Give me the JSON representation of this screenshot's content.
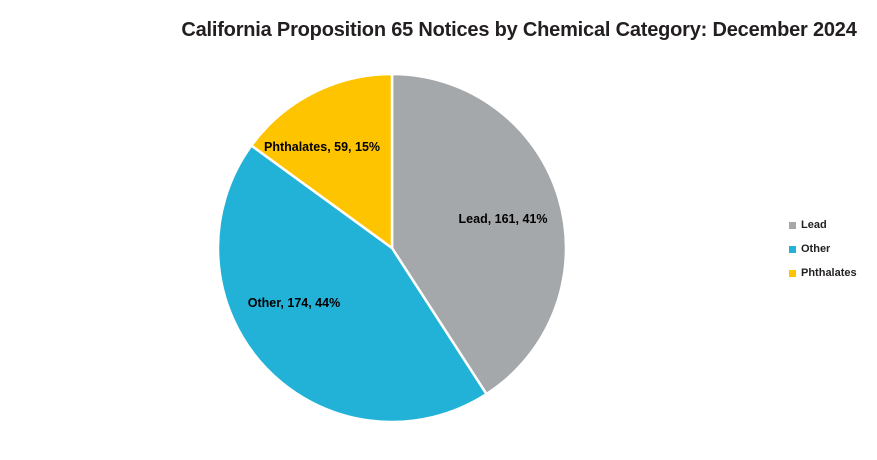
{
  "chart_data": {
    "type": "pie",
    "title": "California Proposition 65 Notices by Chemical Category: December 2024",
    "categories": [
      "Lead",
      "Other",
      "Phthalates"
    ],
    "values": [
      161,
      174,
      59
    ],
    "percents": [
      41,
      44,
      15
    ],
    "slice_labels": [
      "Lead, 161, 41%",
      "Other, 174, 44%",
      "Phthalates, 59, 15%"
    ],
    "colors": [
      "#A5A8AB",
      "#22B2D8",
      "#FFC400"
    ],
    "slice_border_color": "#FFFFFF",
    "start_angle_deg": 0,
    "direction": "clockwise",
    "legend_position": "right",
    "background": "#FFFFFF",
    "title_color": "#231F20",
    "label_color": "#000000"
  },
  "legend": {
    "entries": [
      {
        "label": "Lead",
        "color": "#A5A8AB"
      },
      {
        "label": "Other",
        "color": "#22B2D8"
      },
      {
        "label": "Phthalates",
        "color": "#FFC400"
      }
    ]
  }
}
